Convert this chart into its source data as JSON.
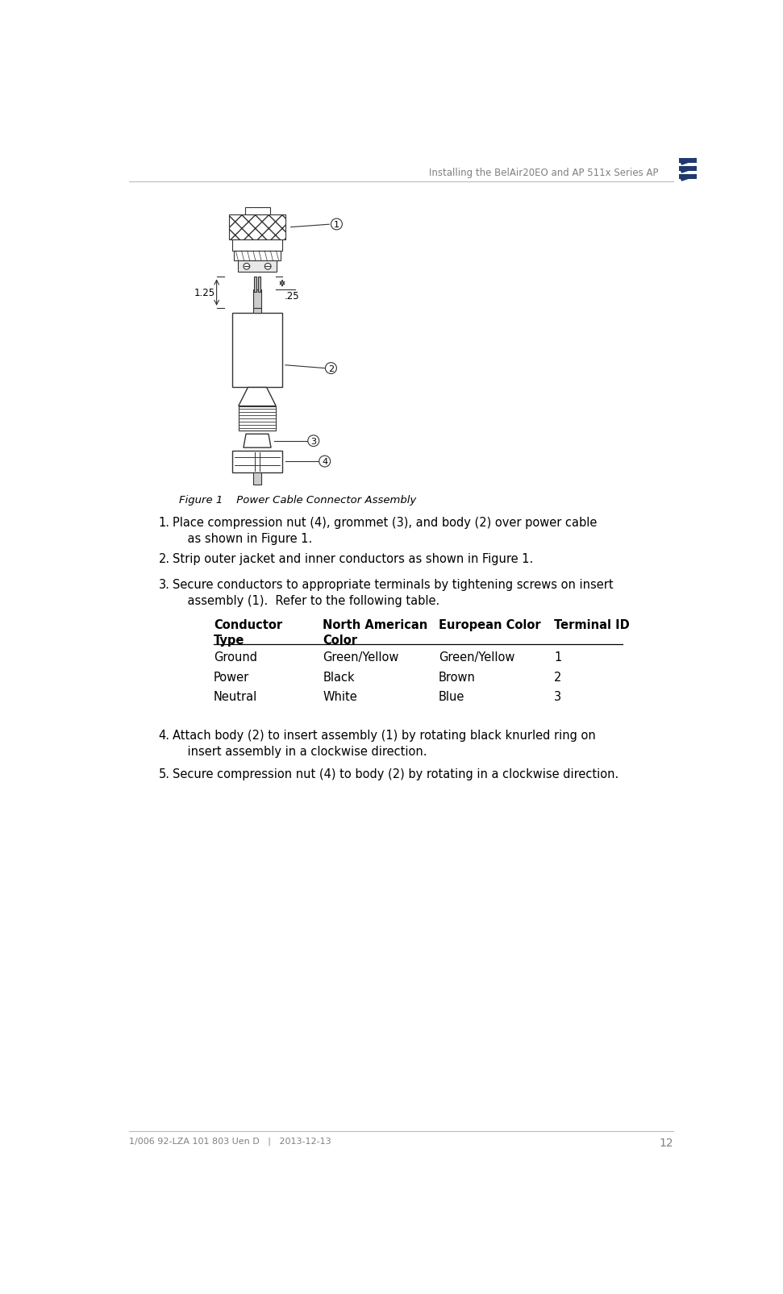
{
  "header_text": "Installing the BelAir20EO and AP 511x Series AP",
  "header_color": "#808080",
  "logo_color": "#1f3a6e",
  "footer_text": "1/006 92-LZA 101 803 Uen D   |   2013-12-13",
  "footer_page": "12",
  "footer_color": "#808080",
  "figure_caption": "Figure 1    Power Cable Connector Assembly",
  "bg_color": "#ffffff",
  "line_color": "#333333",
  "step1_num": "1.",
  "step1_body": "Place compression nut (4), grommet (3), and body (2) over power cable\n    as shown in Figure 1.",
  "step2_num": "2.",
  "step2_body": "Strip outer jacket and inner conductors as shown in Figure 1.",
  "step3_num": "3.",
  "step3_body": "Secure conductors to appropriate terminals by tightening screws on insert\n    assembly (1).  Refer to the following table.",
  "step4_num": "4.",
  "step4_body": "Attach body (2) to insert assembly (1) by rotating black knurled ring on\n    insert assembly in a clockwise direction.",
  "step5_num": "5.",
  "step5_body": "Secure compression nut (4) to body (2) by rotating in a clockwise direction.",
  "table_col1_header": "Conductor\nType",
  "table_col2_header": "North American\nColor",
  "table_col3_header": "European Color",
  "table_col4_header": "Terminal ID",
  "table_rows": [
    [
      "Ground",
      "Green/Yellow",
      "Green/Yellow",
      "1"
    ],
    [
      "Power",
      "Black",
      "Brown",
      "2"
    ],
    [
      "Neutral",
      "White",
      "Blue",
      "3"
    ]
  ]
}
